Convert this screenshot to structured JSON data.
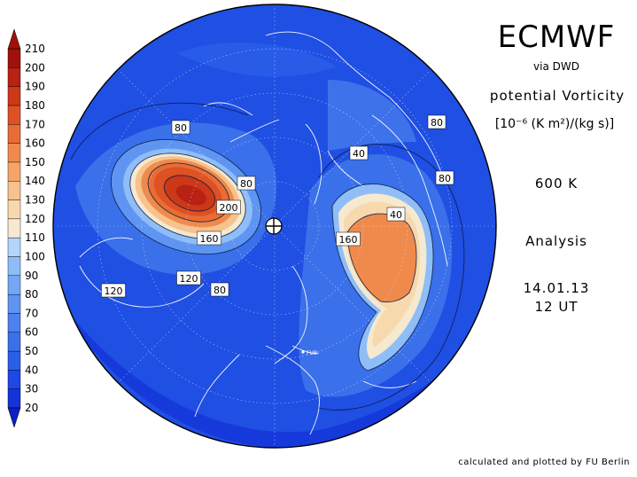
{
  "header": {
    "title": "ECMWF",
    "source": "via DWD",
    "variable": "potential Vorticity",
    "unit": "[10⁻⁶ (K m²)/(kg s)]",
    "level": "600 K",
    "kind": "Analysis",
    "date": "14.01.13",
    "time": "12 UT"
  },
  "footer": {
    "credit": "calculated and plotted by FU Berlin"
  },
  "colorbar": {
    "levels": [
      "20",
      "30",
      "40",
      "50",
      "60",
      "70",
      "80",
      "90",
      "100",
      "110",
      "120",
      "130",
      "140",
      "150",
      "160",
      "170",
      "180",
      "190",
      "200",
      "210"
    ],
    "colors": [
      "#0b1fc4",
      "#1433d8",
      "#1d47e6",
      "#2a5ee8",
      "#3a70ea",
      "#4c82ee",
      "#5f95f2",
      "#74a8f5",
      "#8fbdf8",
      "#b3d4fb",
      "#f5e9cf",
      "#f8d9ae",
      "#f7c28b",
      "#f5a56a",
      "#f08a4c",
      "#e96c34",
      "#dd5123",
      "#cc3818",
      "#b72212",
      "#a0110d"
    ]
  },
  "map": {
    "marker": "FUB",
    "contour_labels": [
      "80",
      "80",
      "200",
      "160",
      "120",
      "80",
      "80",
      "40",
      "80",
      "40",
      "160",
      "120"
    ],
    "pv_field_max": 210
  }
}
